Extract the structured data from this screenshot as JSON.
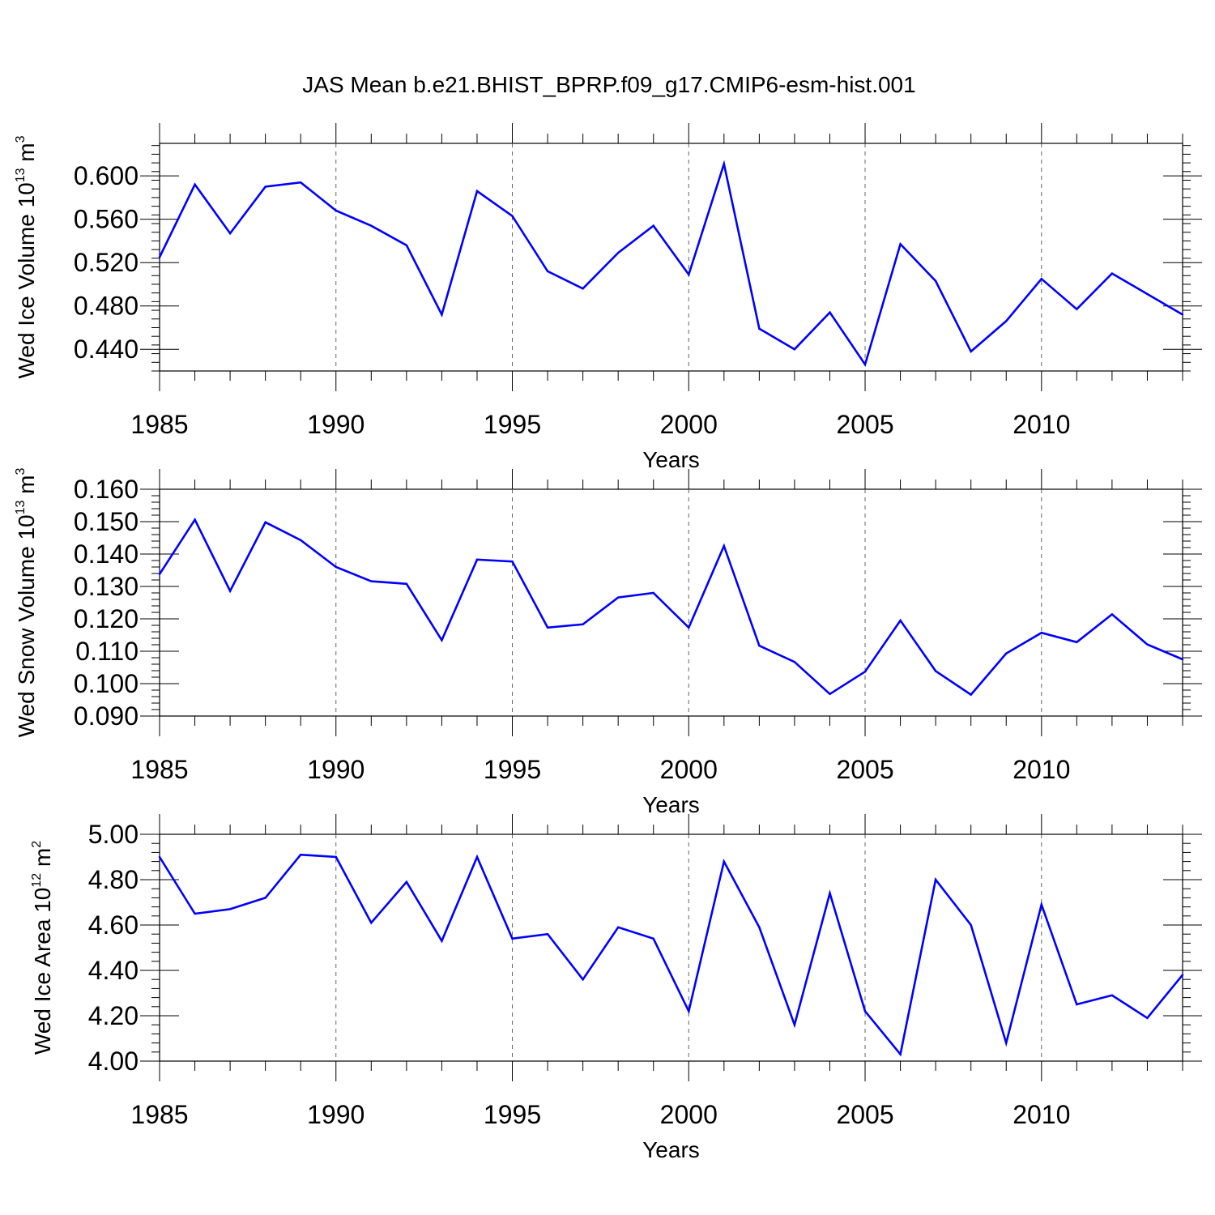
{
  "title": "JAS Mean b.e21.BHIST_BPRP.f09_g17.CMIP6-esm-hist.001",
  "line_color": "#0000ff",
  "chart_data": [
    {
      "type": "line",
      "name": "ice-volume",
      "ylabel": {
        "base": "Wed Ice Volume 10",
        "exp": "13",
        "unit": " m",
        "unit_exp": "3"
      },
      "xlabel": "Years",
      "xlim": [
        1985,
        2014
      ],
      "ylim": [
        0.42,
        0.63
      ],
      "x_ticks": [
        1985,
        1990,
        1995,
        2000,
        2005,
        2010
      ],
      "x_tick_labels": [
        "1985",
        "1990",
        "1995",
        "2000",
        "2005",
        "2010"
      ],
      "y_ticks": [
        0.44,
        0.48,
        0.52,
        0.56,
        0.6
      ],
      "y_tick_labels": [
        "0.440",
        "0.480",
        "0.520",
        "0.560",
        "0.600"
      ],
      "y_minor_step": 0.008,
      "x": [
        1985,
        1986,
        1987,
        1988,
        1989,
        1990,
        1991,
        1992,
        1993,
        1994,
        1995,
        1996,
        1997,
        1998,
        1999,
        2000,
        2001,
        2002,
        2003,
        2004,
        2005,
        2006,
        2007,
        2008,
        2009,
        2010,
        2011,
        2012,
        2013,
        2014
      ],
      "values": [
        0.525,
        0.592,
        0.547,
        0.59,
        0.594,
        0.568,
        0.554,
        0.536,
        0.472,
        0.586,
        0.563,
        0.512,
        0.496,
        0.529,
        0.554,
        0.509,
        0.611,
        0.459,
        0.44,
        0.474,
        0.426,
        0.537,
        0.503,
        0.438,
        0.466,
        0.505,
        0.477,
        0.51,
        0.491,
        0.472
      ]
    },
    {
      "type": "line",
      "name": "snow-volume",
      "ylabel": {
        "base": "Wed Snow Volume 10",
        "exp": "13",
        "unit": " m",
        "unit_exp": "3"
      },
      "xlabel": "Years",
      "xlim": [
        1985,
        2014
      ],
      "ylim": [
        0.09,
        0.16
      ],
      "x_ticks": [
        1985,
        1990,
        1995,
        2000,
        2005,
        2010
      ],
      "x_tick_labels": [
        "1985",
        "1990",
        "1995",
        "2000",
        "2005",
        "2010"
      ],
      "y_ticks": [
        0.09,
        0.1,
        0.11,
        0.12,
        0.13,
        0.14,
        0.15,
        0.16
      ],
      "y_tick_labels": [
        "0.090",
        "0.100",
        "0.110",
        "0.120",
        "0.130",
        "0.140",
        "0.150",
        "0.160"
      ],
      "y_minor_step": 0.002,
      "x": [
        1985,
        1986,
        1987,
        1988,
        1989,
        1990,
        1991,
        1992,
        1993,
        1994,
        1995,
        1996,
        1997,
        1998,
        1999,
        2000,
        2001,
        2002,
        2003,
        2004,
        2005,
        2006,
        2007,
        2008,
        2009,
        2010,
        2011,
        2012,
        2013,
        2014
      ],
      "values": [
        0.1338,
        0.1506,
        0.1286,
        0.1498,
        0.1443,
        0.136,
        0.1316,
        0.1308,
        0.1134,
        0.1383,
        0.1377,
        0.1173,
        0.1183,
        0.1266,
        0.128,
        0.1173,
        0.1425,
        0.1117,
        0.1067,
        0.0968,
        0.1037,
        0.1195,
        0.1039,
        0.0966,
        0.1093,
        0.1157,
        0.1128,
        0.1214,
        0.1121,
        0.1075
      ]
    },
    {
      "type": "line",
      "name": "ice-area",
      "ylabel": {
        "base": "Wed Ice Area 10",
        "exp": "12",
        "unit": " m",
        "unit_exp": "2"
      },
      "xlabel": "Years",
      "xlim": [
        1985,
        2014
      ],
      "ylim": [
        4.0,
        5.0
      ],
      "x_ticks": [
        1985,
        1990,
        1995,
        2000,
        2005,
        2010
      ],
      "x_tick_labels": [
        "1985",
        "1990",
        "1995",
        "2000",
        "2005",
        "2010"
      ],
      "y_ticks": [
        4.0,
        4.2,
        4.4,
        4.6,
        4.8,
        5.0
      ],
      "y_tick_labels": [
        "4.00",
        "4.20",
        "4.40",
        "4.60",
        "4.80",
        "5.00"
      ],
      "y_minor_step": 0.04,
      "x": [
        1985,
        1986,
        1987,
        1988,
        1989,
        1990,
        1991,
        1992,
        1993,
        1994,
        1995,
        1996,
        1997,
        1998,
        1999,
        2000,
        2001,
        2002,
        2003,
        2004,
        2005,
        2006,
        2007,
        2008,
        2009,
        2010,
        2011,
        2012,
        2013,
        2014
      ],
      "values": [
        4.9,
        4.65,
        4.67,
        4.72,
        4.91,
        4.9,
        4.61,
        4.79,
        4.53,
        4.9,
        4.54,
        4.56,
        4.36,
        4.59,
        4.54,
        4.22,
        4.88,
        4.59,
        4.16,
        4.74,
        4.22,
        4.03,
        4.8,
        4.6,
        4.08,
        4.69,
        4.25,
        4.29,
        4.19,
        4.38
      ]
    }
  ]
}
